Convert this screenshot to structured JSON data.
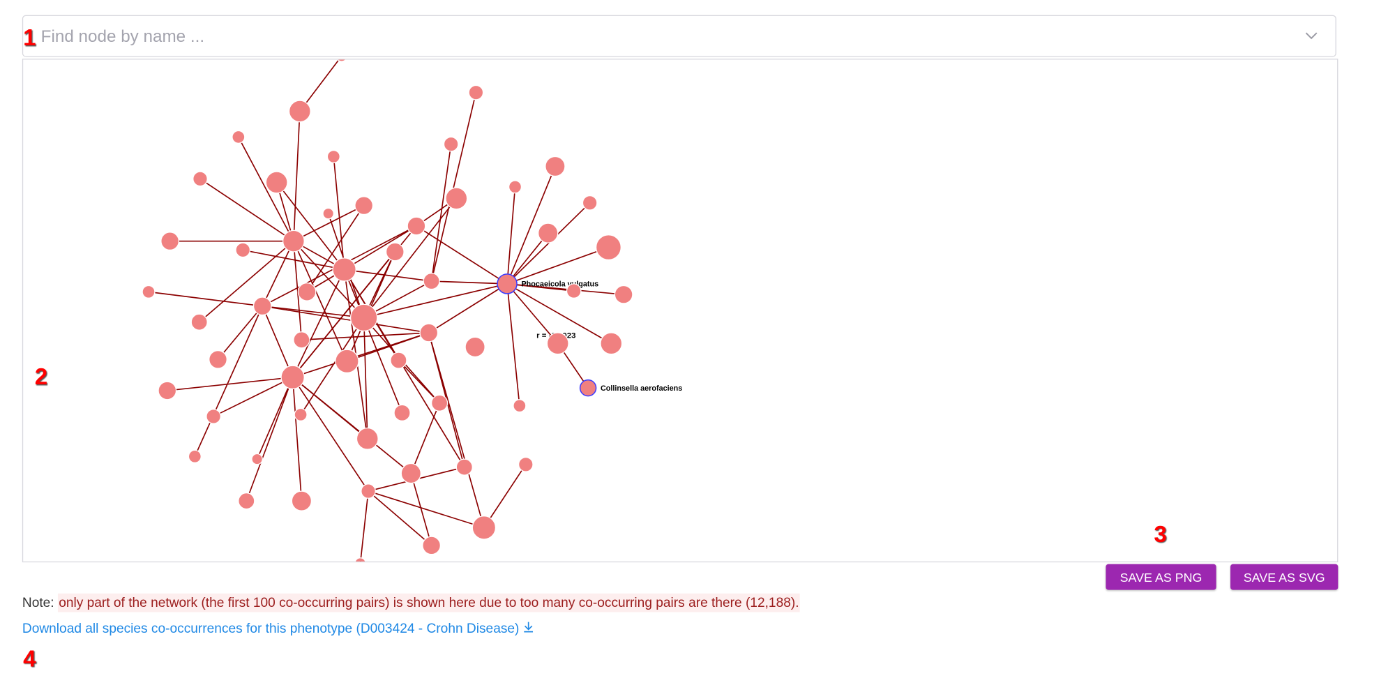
{
  "search": {
    "placeholder": "Find node by name ...",
    "value": ""
  },
  "graph": {
    "node_color": "#f08080",
    "edge_color": "#8b0000",
    "highlight_stroke": "#3b3bff",
    "labeled_nodes": [
      "Phocaeicola vulgatus",
      "Collinsella aerofaciens"
    ],
    "edge_label": "r = -0.1023"
  },
  "buttons": {
    "save_png": "SAVE AS PNG",
    "save_svg": "SAVE AS SVG",
    "color": "#9c27b0"
  },
  "note": {
    "prefix": "Note:",
    "message": "only part of the network (the first 100 co-occurring pairs) is shown here due to too many co-occurring pairs are there (12,188)."
  },
  "download": {
    "label": "Download all species co-occurrences for this phenotype (D003424 - Crohn Disease)",
    "icon": "download-icon"
  },
  "annotations": [
    "1",
    "2",
    "3",
    "4"
  ]
}
